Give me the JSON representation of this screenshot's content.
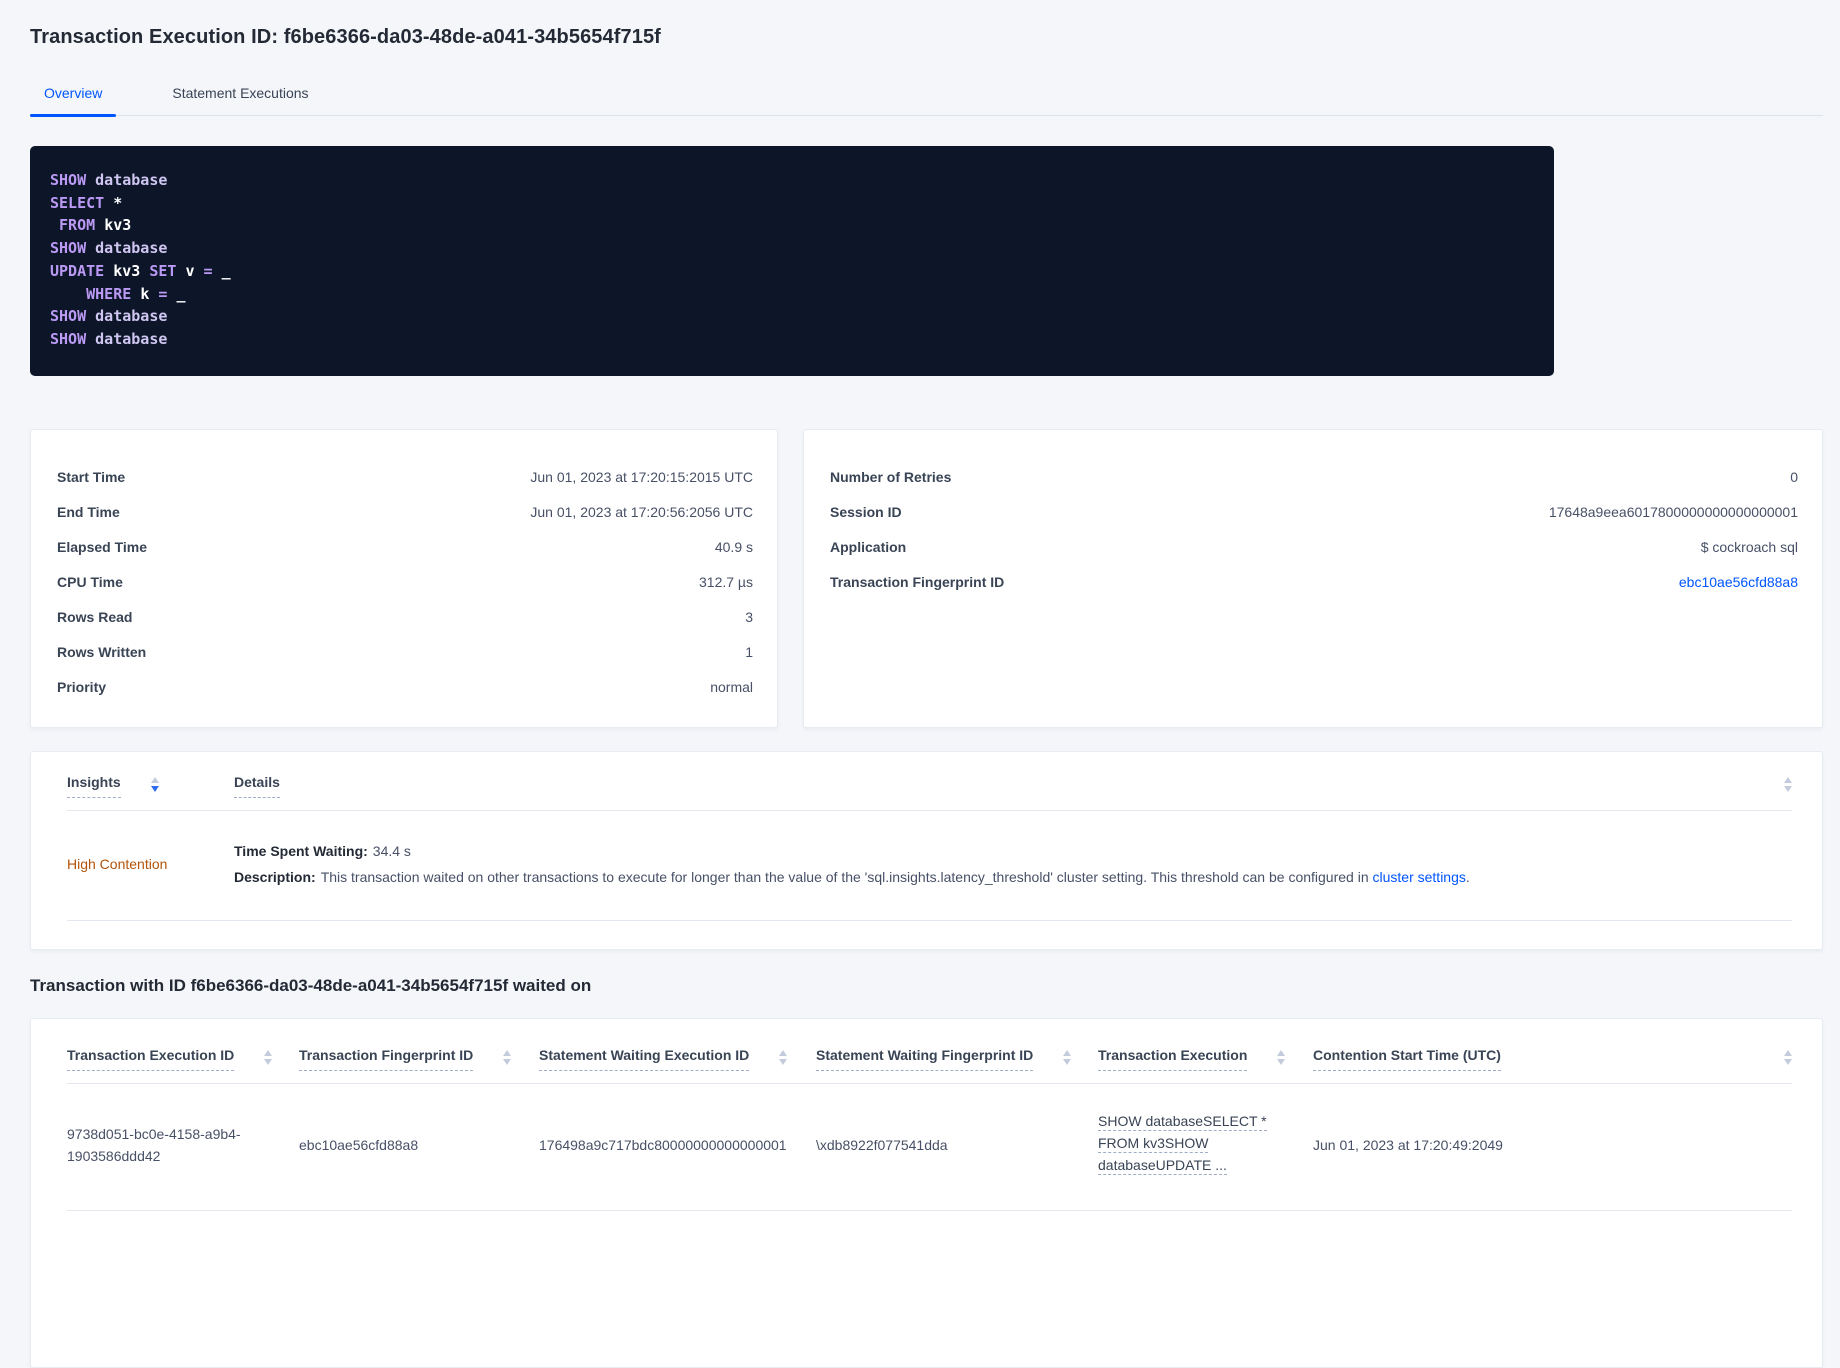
{
  "colors": {
    "accent_blue": "#0055ff",
    "insight_warning": "#b45309",
    "code_background": "#0d1628",
    "code_keyword": "#bb9af5",
    "code_identifier": "#cfc6f1"
  },
  "header": {
    "title": "Transaction Execution ID: f6be6366-da03-48de-a041-34b5654f715f"
  },
  "tabs": [
    {
      "label": "Overview",
      "active": true
    },
    {
      "label": "Statement Executions",
      "active": false
    }
  ],
  "sql": {
    "lines": [
      [
        {
          "text": "SHOW ",
          "type": "kw"
        },
        {
          "text": "database",
          "type": "id"
        }
      ],
      [
        {
          "text": "SELECT ",
          "type": "kw"
        },
        {
          "text": "*",
          "type": "plain"
        }
      ],
      [
        {
          "text": " FROM ",
          "type": "kw"
        },
        {
          "text": "kv3",
          "type": "plain"
        }
      ],
      [
        {
          "text": "SHOW ",
          "type": "kw"
        },
        {
          "text": "database",
          "type": "id"
        }
      ],
      [
        {
          "text": "UPDATE ",
          "type": "kw"
        },
        {
          "text": "kv3 ",
          "type": "plain"
        },
        {
          "text": "SET ",
          "type": "kw"
        },
        {
          "text": "v ",
          "type": "plain"
        },
        {
          "text": "= ",
          "type": "kw"
        },
        {
          "text": "_",
          "type": "plain"
        }
      ],
      [
        {
          "text": "    WHERE ",
          "type": "kw"
        },
        {
          "text": "k ",
          "type": "plain"
        },
        {
          "text": "= ",
          "type": "kw"
        },
        {
          "text": "_",
          "type": "plain"
        }
      ],
      [
        {
          "text": "SHOW ",
          "type": "kw"
        },
        {
          "text": "database",
          "type": "id"
        }
      ],
      [
        {
          "text": "SHOW ",
          "type": "kw"
        },
        {
          "text": "database",
          "type": "id"
        }
      ]
    ]
  },
  "summary_left": {
    "rows": [
      {
        "label": "Start Time",
        "value": "Jun 01, 2023 at 17:20:15:2015 UTC"
      },
      {
        "label": "End Time",
        "value": "Jun 01, 2023 at 17:20:56:2056 UTC"
      },
      {
        "label": "Elapsed Time",
        "value": "40.9 s"
      },
      {
        "label": "CPU Time",
        "value": "312.7 µs"
      },
      {
        "label": "Rows Read",
        "value": "3"
      },
      {
        "label": "Rows Written",
        "value": "1"
      },
      {
        "label": "Priority",
        "value": "normal"
      }
    ]
  },
  "summary_right": {
    "rows": [
      {
        "label": "Number of Retries",
        "value": "0"
      },
      {
        "label": "Session ID",
        "value": "17648a9eea6017800000000000000001"
      },
      {
        "label": "Application",
        "value": "$ cockroach sql"
      },
      {
        "label": "Transaction Fingerprint ID",
        "value": "ebc10ae56cfd88a8",
        "link": true
      }
    ]
  },
  "insights_table": {
    "columns": [
      {
        "label": "Insights",
        "sort": "desc"
      },
      {
        "label": "Details",
        "sort": null
      }
    ],
    "row": {
      "insight": "High Contention",
      "time_spent_waiting_label": "Time Spent Waiting:",
      "time_spent_waiting_value": "34.4 s",
      "description_label": "Description:",
      "description_text": "This transaction waited on other transactions to execute for longer than the value of the 'sql.insights.latency_threshold' cluster setting. This threshold can be configured in ",
      "description_link": "cluster settings",
      "description_suffix": "."
    }
  },
  "waited_on": {
    "heading": "Transaction with ID f6be6366-da03-48de-a041-34b5654f715f waited on",
    "columns": [
      "Transaction Execution ID",
      "Transaction Fingerprint ID",
      "Statement Waiting Execution ID",
      "Statement Waiting Fingerprint ID",
      "Transaction Execution",
      "Contention Start Time (UTC)"
    ],
    "row": {
      "transaction_execution_id": "9738d051-bc0e-4158-a9b4-1903586ddd42",
      "transaction_fingerprint_id": "ebc10ae56cfd88a8",
      "statement_waiting_execution_id": "176498a9c717bdc80000000000000001",
      "statement_waiting_fingerprint_id": "\\xdb8922f077541dda",
      "transaction_execution_lines": [
        "SHOW databaseSELECT *",
        "FROM kv3SHOW",
        "databaseUPDATE ..."
      ],
      "contention_start_time": "Jun 01, 2023 at 17:20:49:2049"
    }
  }
}
